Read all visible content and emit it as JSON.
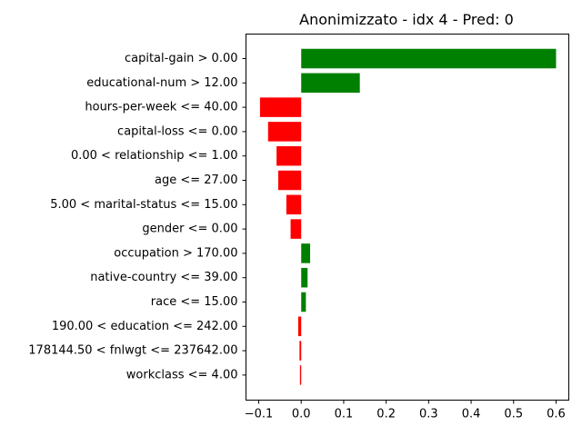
{
  "chart_data": {
    "type": "bar",
    "orientation": "horizontal",
    "title": "Anonimizzato - idx 4 - Pred: 0",
    "xlabel": "",
    "ylabel": "",
    "xlim": [
      -0.13,
      0.63
    ],
    "xticks": [
      -0.1,
      0.0,
      0.1,
      0.2,
      0.3,
      0.4,
      0.5,
      0.6
    ],
    "xtick_labels": [
      "−0.1",
      "0.0",
      "0.1",
      "0.2",
      "0.3",
      "0.4",
      "0.5",
      "0.6"
    ],
    "grid": false,
    "legend": null,
    "colors": {
      "positive": "#008000",
      "negative": "#ff0000"
    },
    "categories": [
      "capital-gain > 0.00",
      "educational-num > 12.00",
      "hours-per-week <= 40.00",
      "capital-loss <= 0.00",
      "0.00 < relationship <= 1.00",
      "age <= 27.00",
      "5.00 < marital-status <= 15.00",
      "gender <= 0.00",
      "occupation > 170.00",
      "native-country <= 39.00",
      "race <= 15.00",
      "190.00 < education <= 242.00",
      "178144.50 < fnlwgt <= 237642.00",
      "workclass <= 4.00"
    ],
    "values": [
      0.6,
      0.138,
      -0.097,
      -0.078,
      -0.058,
      -0.054,
      -0.035,
      -0.025,
      0.021,
      0.015,
      0.011,
      -0.007,
      -0.004,
      -0.003
    ]
  }
}
